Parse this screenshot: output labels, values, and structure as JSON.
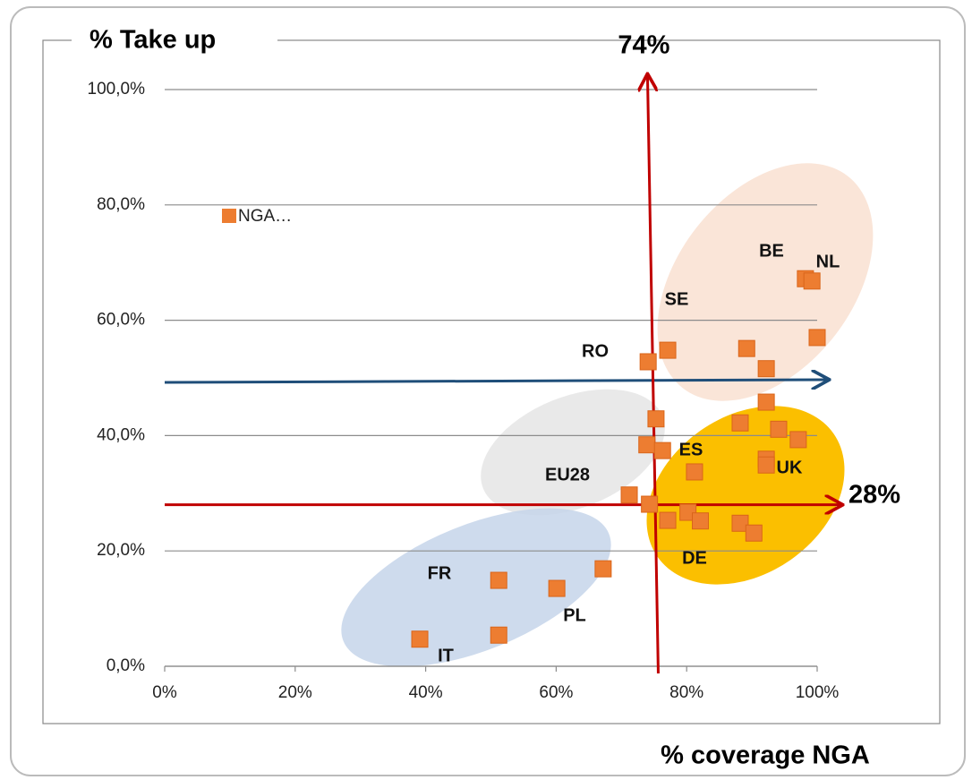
{
  "chart_data": {
    "type": "scatter",
    "y_axis_title": "% Take up",
    "x_axis_title": "% coverage NGA",
    "series": [
      {
        "name": "NGA…",
        "color": "#ed7d31",
        "x": [
          39.1,
          51.2,
          51.2,
          60.1,
          67.2,
          71.2,
          74.3,
          73.9,
          76.3,
          77.1,
          80.2,
          82.1,
          81.2,
          75.3,
          74.1,
          77.1,
          89.2,
          92.2,
          92.2,
          88.2,
          94.1,
          97.1,
          92.2,
          92.2,
          88.2,
          90.3,
          98.2,
          99.2,
          100.0
        ],
        "values": [
          4.7,
          5.4,
          14.9,
          13.5,
          16.9,
          29.7,
          28.1,
          38.4,
          37.4,
          25.3,
          26.7,
          25.2,
          33.7,
          42.9,
          52.8,
          54.8,
          55.1,
          51.6,
          45.8,
          42.2,
          41.1,
          39.3,
          35.9,
          34.9,
          24.8,
          23.1,
          67.2,
          66.8,
          57.0
        ]
      }
    ],
    "xlim": [
      0,
      100
    ],
    "ylim": [
      0,
      100
    ],
    "xticks": [
      {
        "value": 0,
        "label": "0%"
      },
      {
        "value": 20,
        "label": "20%"
      },
      {
        "value": 40,
        "label": "40%"
      },
      {
        "value": 60,
        "label": "60%"
      },
      {
        "value": 80,
        "label": "80%"
      },
      {
        "value": 100,
        "label": "100%"
      }
    ],
    "yticks": [
      {
        "value": 0,
        "label": "0,0%"
      },
      {
        "value": 20,
        "label": "20,0%"
      },
      {
        "value": 40,
        "label": "40,0%"
      },
      {
        "value": 60,
        "label": "60,0%"
      },
      {
        "value": 80,
        "label": "80,0%"
      },
      {
        "value": 100,
        "label": "100,0%"
      }
    ],
    "grid": true,
    "reference_lines": [
      {
        "axis": "x",
        "value": 74,
        "label": "74%",
        "color": "#c00000"
      },
      {
        "axis": "y",
        "value": 28,
        "label": "28%",
        "color": "#c00000"
      }
    ],
    "group_labels": [
      "BE",
      "NL",
      "SE",
      "RO",
      "ES",
      "UK",
      "EU28",
      "DE",
      "FR",
      "PL",
      "IT"
    ]
  }
}
